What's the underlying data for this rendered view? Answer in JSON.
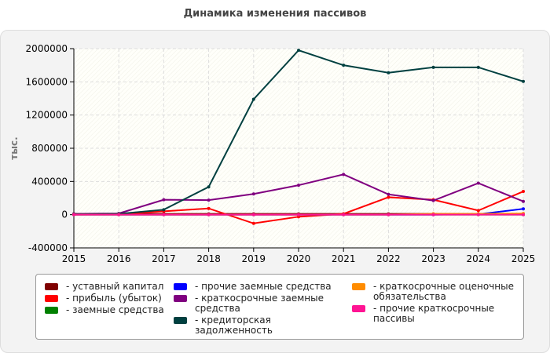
{
  "chart_data": {
    "type": "line",
    "title": "Динамика изменения пассивов",
    "xlabel": "",
    "ylabel": "тыс.",
    "x": [
      2015,
      2016,
      2017,
      2018,
      2019,
      2020,
      2021,
      2022,
      2023,
      2024,
      2025
    ],
    "ylim": [
      -400000,
      2000000
    ],
    "yticks": [
      "2000000",
      "1600000",
      "1200000",
      "800000",
      "400000",
      "0",
      "-400000"
    ],
    "yticks_values": [
      2000000,
      1600000,
      1200000,
      800000,
      400000,
      0,
      -400000
    ],
    "xticks": [
      "2015",
      "2016",
      "2017",
      "2018",
      "2019",
      "2020",
      "2021",
      "2022",
      "2023",
      "2024",
      "2025"
    ],
    "grid": true,
    "legend_position": "bottom",
    "series": [
      {
        "name": "- уставный капитал",
        "color": "#7f0000",
        "values": [
          10000,
          10000,
          10000,
          10000,
          10000,
          10000,
          10000,
          10000,
          10000,
          10000,
          10000
        ]
      },
      {
        "name": "- прибыль (убыток)",
        "color": "#ff0000",
        "values": [
          0,
          5000,
          40000,
          75000,
          -105000,
          -25000,
          10000,
          210000,
          180000,
          50000,
          280000
        ]
      },
      {
        "name": "- заемные средства",
        "color": "#008000",
        "values": [
          0,
          0,
          0,
          0,
          0,
          0,
          0,
          0,
          0,
          0,
          0
        ]
      },
      {
        "name": "- прочие заемные средства",
        "color": "#0000ff",
        "values": [
          0,
          0,
          0,
          0,
          0,
          0,
          0,
          0,
          0,
          5000,
          70000
        ]
      },
      {
        "name": "- краткосрочные заемные средства",
        "color": "#800080",
        "values": [
          10000,
          15000,
          180000,
          175000,
          250000,
          355000,
          485000,
          245000,
          170000,
          380000,
          160000
        ]
      },
      {
        "name": "- кредиторская задолженность",
        "color": "#004040",
        "values": [
          5000,
          10000,
          60000,
          335000,
          1390000,
          1980000,
          1800000,
          1710000,
          1775000,
          1775000,
          1605000
        ]
      },
      {
        "name": "- краткосрочные оценочные обязательства",
        "color": "#ff8c00",
        "values": [
          0,
          0,
          0,
          0,
          0,
          0,
          0,
          0,
          10000,
          10000,
          15000
        ]
      },
      {
        "name": "- прочие краткосрочные пассивы",
        "color": "#ff1493",
        "values": [
          0,
          0,
          0,
          0,
          0,
          0,
          0,
          0,
          0,
          0,
          0
        ]
      }
    ]
  },
  "legend_columns": [
    [
      {
        "label": "- уставный капитал",
        "color": "#7f0000"
      },
      {
        "label": "- прибыль (убыток)",
        "color": "#ff0000"
      },
      {
        "label": "- заемные средства",
        "color": "#008000"
      }
    ],
    [
      {
        "label": "- прочие заемные средства",
        "color": "#0000ff"
      },
      {
        "label": "- краткосрочные заемные\nсредства",
        "color": "#800080"
      },
      {
        "label": "- кредиторская задолженность",
        "color": "#004040"
      }
    ],
    [
      {
        "label": "- краткосрочные оценочные\nобязательства",
        "color": "#ff8c00"
      },
      {
        "label": "- прочие краткосрочные\nпассивы",
        "color": "#ff1493"
      }
    ]
  ]
}
